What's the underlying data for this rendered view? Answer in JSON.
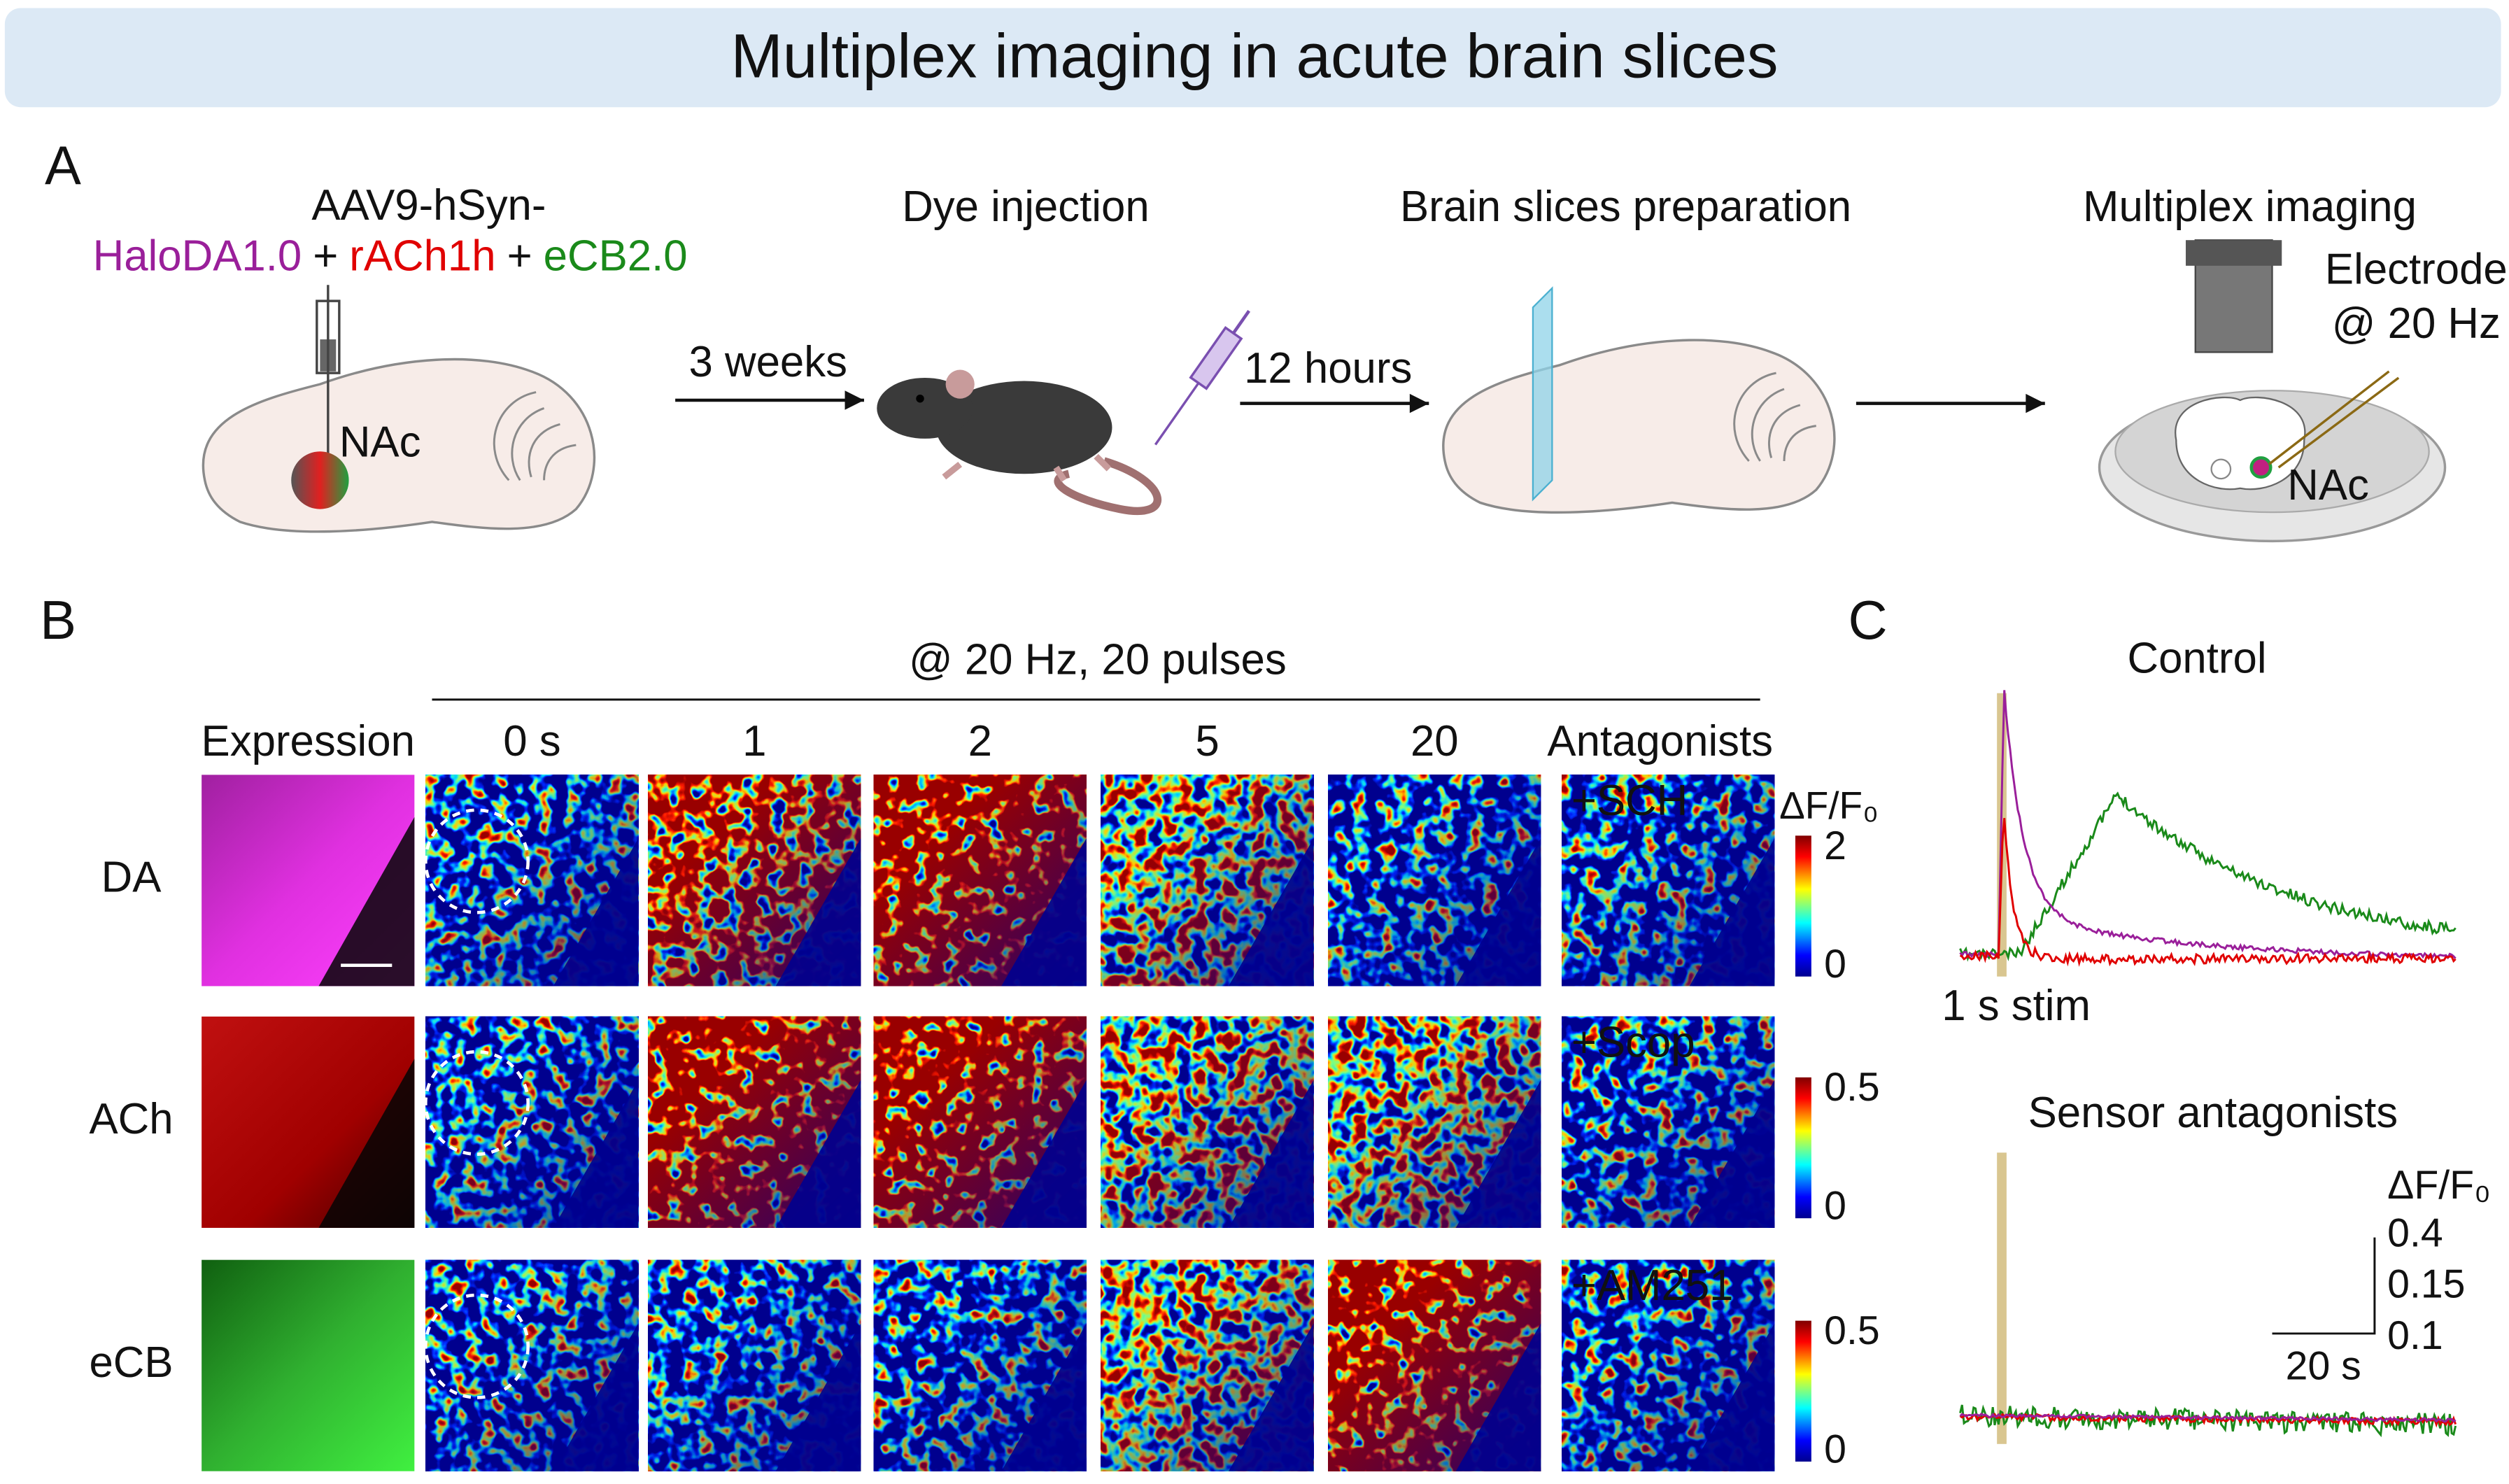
{
  "header": {
    "title": "Multiplex imaging in acute brain slices"
  },
  "panel_a": {
    "label": "A",
    "virus": "AAV9-hSyn-",
    "sensors": [
      "HaloDA1.0",
      "rACh1h",
      "eCB2.0"
    ],
    "plus": "+",
    "region": "NAc",
    "steps": [
      {
        "interval": "3 weeks",
        "title": "Dye injection"
      },
      {
        "interval": "12 hours",
        "title": "Brain slices preparation"
      },
      {
        "title": "Multiplex imaging"
      }
    ],
    "electrode": [
      "Electrode",
      "@ 20 Hz"
    ],
    "dish_region": "NAc"
  },
  "panel_b": {
    "label": "B",
    "stimulus": "@ 20 Hz, 20 pulses",
    "columns": [
      "Expression",
      "0 s",
      "1",
      "2",
      "5",
      "20",
      "Antagonists"
    ],
    "colorbar_label": "ΔF/F₀",
    "rows": [
      {
        "name": "DA",
        "antagonist": "+SCH",
        "colorbar_max": 2,
        "colorbar_min": 0
      },
      {
        "name": "ACh",
        "antagonist": "+Scop",
        "colorbar_max": 0.5,
        "colorbar_min": 0
      },
      {
        "name": "eCB",
        "antagonist": "+AM251",
        "colorbar_max": 0.5,
        "colorbar_min": 0
      }
    ]
  },
  "panel_c": {
    "label": "C",
    "control": "Control",
    "stim": "1 s stim",
    "antagonists": "Sensor antagonists",
    "scale": {
      "y_label": "ΔF/F₀",
      "y_values": [
        0.4,
        0.15,
        0.1
      ],
      "x_label": "20 s"
    }
  }
}
